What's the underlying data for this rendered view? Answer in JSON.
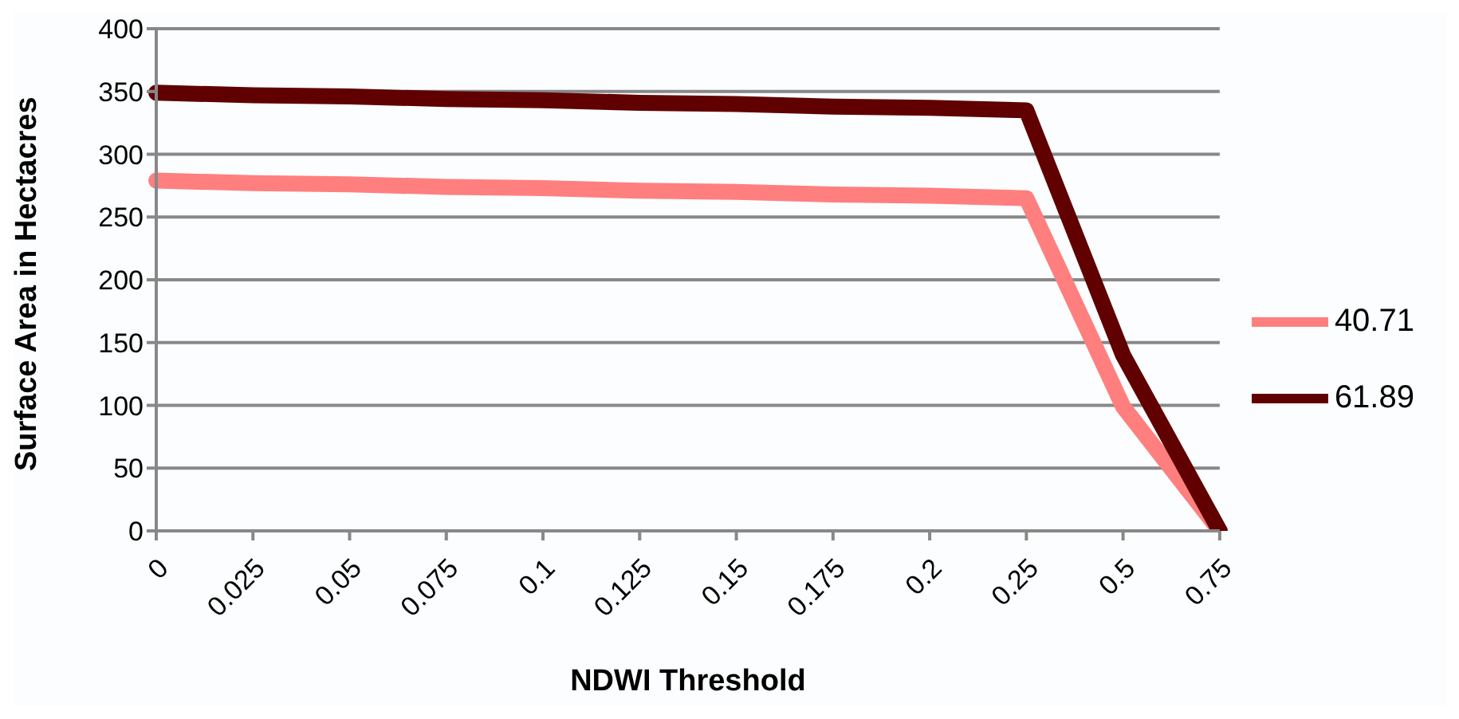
{
  "chart_data": {
    "type": "line",
    "xlabel": "NDWI Threshold",
    "ylabel": "Surface Area in Hectacres",
    "categories": [
      "0",
      "0.025",
      "0.05",
      "0.075",
      "0.1",
      "0.125",
      "0.15",
      "0.175",
      "0.2",
      "0.25",
      "0.5",
      "0.75"
    ],
    "series": [
      {
        "name": "40.71",
        "color": "#ff7f7f",
        "values": [
          279,
          277,
          276,
          274,
          273,
          271,
          270,
          268,
          267,
          265,
          99,
          0
        ]
      },
      {
        "name": "61.89",
        "color": "#600000",
        "values": [
          349,
          347,
          346,
          344,
          343,
          341,
          340,
          338,
          337,
          335,
          140,
          0
        ]
      }
    ],
    "ylim": [
      0,
      400
    ],
    "yticks": [
      0,
      50,
      100,
      150,
      200,
      250,
      300,
      350,
      400
    ],
    "grid": "y",
    "legend": "right",
    "marker": "none",
    "line_style": "solid"
  }
}
